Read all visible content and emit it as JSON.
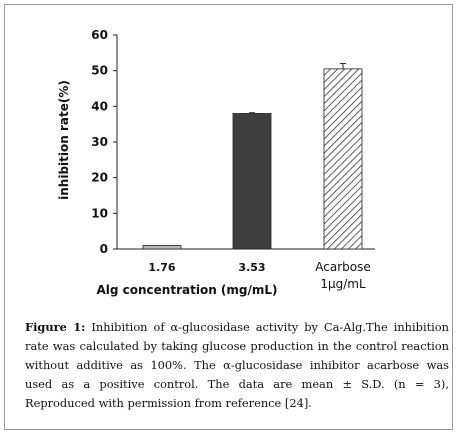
{
  "chart_data": {
    "type": "bar",
    "categories": [
      "1.76",
      "3.53",
      "Acarbose 1μg/mL"
    ],
    "category_lines": [
      [
        "1.76"
      ],
      [
        "3.53"
      ],
      [
        "Acarbose",
        "1μg/mL"
      ]
    ],
    "values": [
      1,
      38,
      50.5
    ],
    "errors": [
      0,
      0.2,
      1.5
    ],
    "bar_styles": [
      "light-gray",
      "dark-gray",
      "hatched"
    ],
    "ylabel": "inhibition rate(%)",
    "xlabel": "Alg concentration (mg/mL)",
    "ylim": [
      0,
      60
    ],
    "yticks": [
      0,
      10,
      20,
      30,
      40,
      50,
      60
    ],
    "grid": false
  },
  "caption": {
    "label": "Figure 1:",
    "text": "Inhibition of α-glucosidase activity by Ca-Alg.The inhibition rate was calculated by taking glucose production in the control reaction without additive as 100%. The α-glucosidase inhibitor acarbose was used as a positive control. The data are mean ± S.D. (n = 3), Reproduced with permission from reference [24]."
  }
}
